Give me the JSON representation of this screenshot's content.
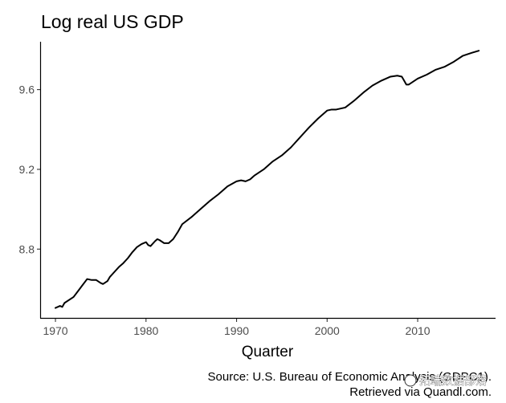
{
  "chart_data": {
    "type": "line",
    "title": "Log real US GDP",
    "xlabel": "Quarter",
    "ylabel": "",
    "xlim": [
      1968.4,
      2018.6
    ],
    "ylim": [
      8.455,
      9.84
    ],
    "x_ticks": [
      1970,
      1980,
      1990,
      2000,
      2010
    ],
    "x_tick_labels": [
      "1970",
      "1980",
      "1990",
      "2000",
      "2010"
    ],
    "y_ticks": [
      8.8,
      9.2,
      9.6
    ],
    "y_tick_labels": [
      "8.8",
      "9.2",
      "9.6"
    ],
    "grid": false,
    "series": [
      {
        "name": "Log real US GDP",
        "color": "#000000",
        "x": [
          1970.0,
          1970.5,
          1970.75,
          1971.0,
          1972.0,
          1972.5,
          1973.0,
          1973.5,
          1974.0,
          1974.5,
          1975.0,
          1975.25,
          1975.75,
          1976.0,
          1976.5,
          1977.0,
          1977.5,
          1978.0,
          1978.5,
          1979.0,
          1979.5,
          1980.0,
          1980.25,
          1980.5,
          1981.0,
          1981.25,
          1981.5,
          1982.0,
          1982.5,
          1983.0,
          1983.5,
          1984.0,
          1985.0,
          1986.0,
          1987.0,
          1988.0,
          1989.0,
          1990.0,
          1990.5,
          1991.0,
          1991.5,
          1992.0,
          1993.0,
          1994.0,
          1995.0,
          1996.0,
          1997.0,
          1998.0,
          1999.0,
          2000.0,
          2000.5,
          2001.0,
          2001.5,
          2002.0,
          2003.0,
          2004.0,
          2005.0,
          2006.0,
          2007.0,
          2007.75,
          2008.25,
          2008.5,
          2008.75,
          2009.0,
          2009.5,
          2010.0,
          2011.0,
          2012.0,
          2013.0,
          2014.0,
          2015.0,
          2016.0,
          2016.75
        ],
        "y": [
          8.505,
          8.515,
          8.51,
          8.53,
          8.56,
          8.59,
          8.62,
          8.65,
          8.645,
          8.645,
          8.63,
          8.625,
          8.64,
          8.66,
          8.685,
          8.71,
          8.73,
          8.755,
          8.785,
          8.81,
          8.825,
          8.835,
          8.82,
          8.815,
          8.84,
          8.85,
          8.845,
          8.83,
          8.83,
          8.85,
          8.885,
          8.925,
          8.96,
          9.0,
          9.04,
          9.075,
          9.115,
          9.14,
          9.145,
          9.14,
          9.15,
          9.17,
          9.2,
          9.24,
          9.27,
          9.31,
          9.36,
          9.41,
          9.455,
          9.495,
          9.5,
          9.5,
          9.505,
          9.51,
          9.545,
          9.585,
          9.62,
          9.645,
          9.665,
          9.67,
          9.665,
          9.645,
          9.625,
          9.625,
          9.64,
          9.655,
          9.675,
          9.7,
          9.715,
          9.74,
          9.77,
          9.785,
          9.795
        ]
      }
    ]
  },
  "caption": {
    "line1": "Source: U.S. Bureau of Economic Analysis (GDPC1).",
    "line2": "Retrieved via Quandl.com."
  },
  "watermark": {
    "text": "拓端数据部落"
  }
}
